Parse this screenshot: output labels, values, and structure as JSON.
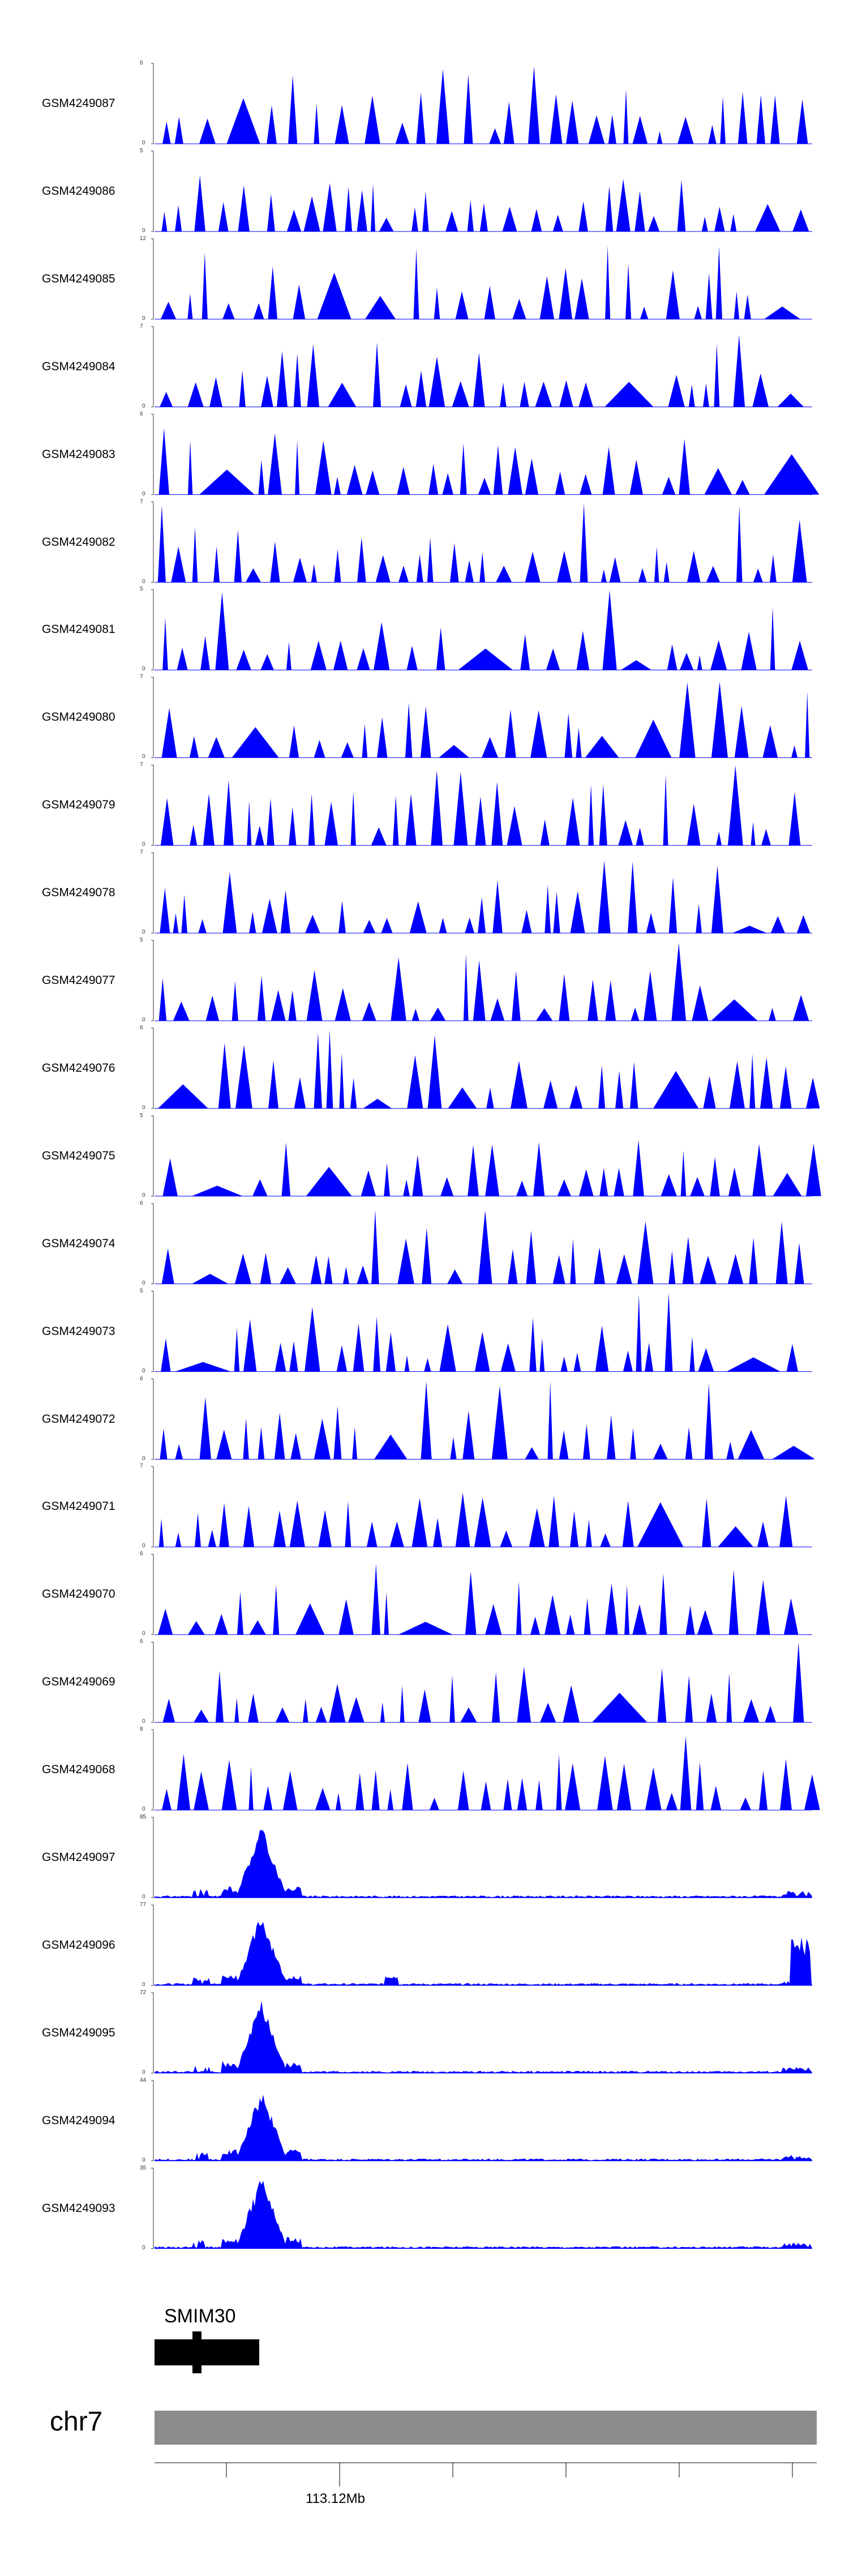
{
  "style": {
    "fill_color": "#0000ff",
    "axis_color": "#333333",
    "ideogram_color": "#8c8c8c"
  },
  "tracks": [
    {
      "name": "GSM4249087",
      "ymax": "6",
      "ymin": "0",
      "type": "sparse",
      "seed": 11
    },
    {
      "name": "GSM4249086",
      "ymax": "5",
      "ymin": "0",
      "type": "sparse",
      "seed": 12
    },
    {
      "name": "GSM4249085",
      "ymax": "12",
      "ymin": "0",
      "type": "sparse",
      "seed": 13
    },
    {
      "name": "GSM4249084",
      "ymax": "7",
      "ymin": "0",
      "type": "sparse",
      "seed": 14
    },
    {
      "name": "GSM4249083",
      "ymax": "6",
      "ymin": "0",
      "type": "sparse",
      "seed": 15
    },
    {
      "name": "GSM4249082",
      "ymax": "7",
      "ymin": "0",
      "type": "sparse",
      "seed": 16
    },
    {
      "name": "GSM4249081",
      "ymax": "5",
      "ymin": "0",
      "type": "sparse",
      "seed": 17
    },
    {
      "name": "GSM4249080",
      "ymax": "7",
      "ymin": "0",
      "type": "sparse",
      "seed": 18
    },
    {
      "name": "GSM4249079",
      "ymax": "7",
      "ymin": "0",
      "type": "sparse",
      "seed": 19
    },
    {
      "name": "GSM4249078",
      "ymax": "7",
      "ymin": "0",
      "type": "sparse",
      "seed": 20
    },
    {
      "name": "GSM4249077",
      "ymax": "5",
      "ymin": "0",
      "type": "sparse",
      "seed": 21
    },
    {
      "name": "GSM4249076",
      "ymax": "6",
      "ymin": "0",
      "type": "sparse",
      "seed": 22
    },
    {
      "name": "GSM4249075",
      "ymax": "5",
      "ymin": "0",
      "type": "sparse",
      "seed": 23
    },
    {
      "name": "GSM4249074",
      "ymax": "6",
      "ymin": "0",
      "type": "sparse",
      "seed": 24
    },
    {
      "name": "GSM4249073",
      "ymax": "5",
      "ymin": "0",
      "type": "sparse",
      "seed": 25
    },
    {
      "name": "GSM4249072",
      "ymax": "6",
      "ymin": "0",
      "type": "sparse",
      "seed": 26
    },
    {
      "name": "GSM4249071",
      "ymax": "7",
      "ymin": "0",
      "type": "sparse",
      "seed": 27
    },
    {
      "name": "GSM4249070",
      "ymax": "6",
      "ymin": "0",
      "type": "sparse",
      "seed": 28
    },
    {
      "name": "GSM4249069",
      "ymax": "6",
      "ymin": "0",
      "type": "sparse",
      "seed": 29
    },
    {
      "name": "GSM4249068",
      "ymax": "8",
      "ymin": "0",
      "type": "sparse",
      "seed": 30
    },
    {
      "name": "GSM4249097",
      "ymax": "85",
      "ymin": "0",
      "type": "peak",
      "seed": 31
    },
    {
      "name": "GSM4249096",
      "ymax": "77",
      "ymin": "0",
      "type": "peak2",
      "seed": 32
    },
    {
      "name": "GSM4249095",
      "ymax": "72",
      "ymin": "0",
      "type": "peak",
      "seed": 33
    },
    {
      "name": "GSM4249094",
      "ymax": "44",
      "ymin": "0",
      "type": "peak",
      "seed": 34
    },
    {
      "name": "GSM4249093",
      "ymax": "35",
      "ymin": "0",
      "type": "peak",
      "seed": 35
    }
  ],
  "gene": {
    "name": "SMIM30"
  },
  "ideogram": {
    "chrom": "chr7",
    "coordinate_label": "113.12Mb"
  }
}
